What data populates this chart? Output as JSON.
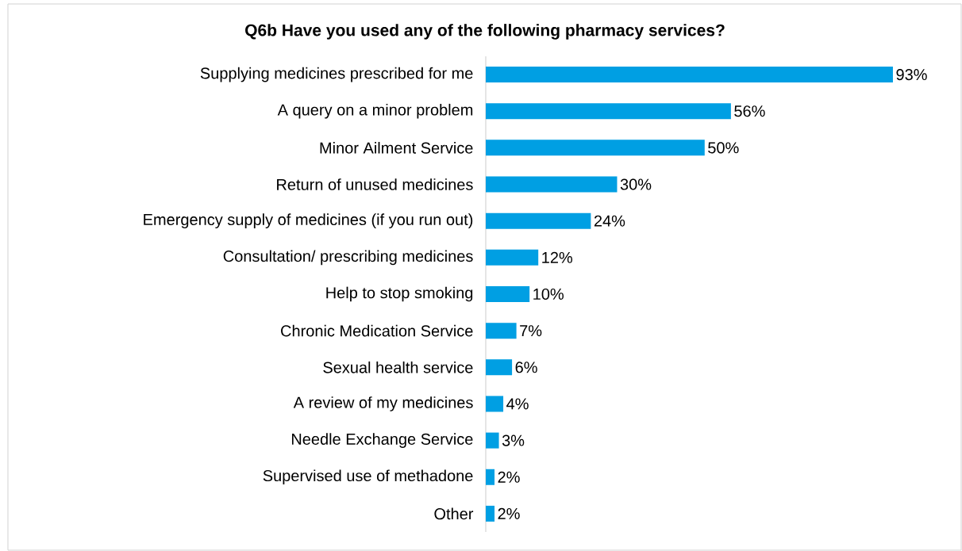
{
  "chart_data": {
    "type": "bar",
    "orientation": "horizontal",
    "title": "Q6b Have you used any of the following pharmacy services?",
    "categories": [
      "Supplying medicines prescribed for me",
      "A query on a minor problem",
      "Minor Ailment Service",
      "Return of unused medicines",
      "Emergency supply of medicines (if you run out)",
      "Consultation/ prescribing medicines",
      "Help to stop smoking",
      "Chronic Medication Service",
      "Sexual health service",
      "A review of my medicines",
      "Needle Exchange Service",
      "Supervised use of methadone",
      "Other"
    ],
    "values": [
      93,
      56,
      50,
      30,
      24,
      12,
      10,
      7,
      6,
      4,
      3,
      2,
      2
    ],
    "value_labels": [
      "93%",
      "56%",
      "50%",
      "30%",
      "24%",
      "12%",
      "10%",
      "7%",
      "6%",
      "4%",
      "3%",
      "2%",
      "2%"
    ],
    "color": "#009fe3"
  }
}
